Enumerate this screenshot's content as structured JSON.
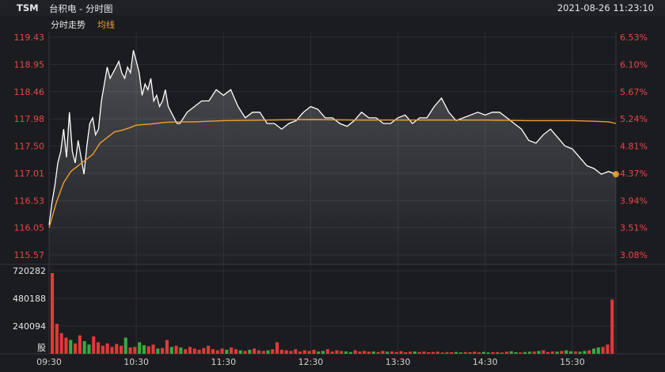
{
  "header": {
    "symbol": "TSM",
    "title": "台积电 - 分时图",
    "datetime": "2021-08-26 11:23:10"
  },
  "subheader": {
    "mode_label": "分时走势",
    "avg_label": "均线"
  },
  "colors": {
    "price_line": "#ffffff",
    "avg_line": "#f0a030",
    "up": "#e03a3a",
    "down": "#3aa844",
    "axis_red": "#e84848",
    "grid": "#2c2d33"
  },
  "chart_data": [
    {
      "type": "line",
      "title": "分时走势",
      "y_ticks": [
        "119.43",
        "118.95",
        "118.46",
        "117.98",
        "117.50",
        "117.01",
        "116.53",
        "116.05",
        "115.57"
      ],
      "y2_ticks": [
        "6.53%",
        "6.10%",
        "5.67%",
        "5.24%",
        "4.81%",
        "4.37%",
        "3.94%",
        "3.51%",
        "3.08%"
      ],
      "x_ticks": [
        "09:30",
        "10:30",
        "11:30",
        "12:30",
        "13:30",
        "14:30",
        "15:30"
      ],
      "ylim": [
        115.57,
        119.43
      ],
      "x_minutes_range": [
        0,
        390
      ],
      "series": [
        {
          "name": "价格",
          "x": [
            0,
            2,
            4,
            6,
            8,
            10,
            12,
            14,
            16,
            18,
            20,
            22,
            24,
            26,
            28,
            30,
            32,
            34,
            36,
            38,
            40,
            42,
            44,
            46,
            48,
            50,
            52,
            54,
            56,
            58,
            60,
            62,
            64,
            66,
            68,
            70,
            72,
            74,
            76,
            78,
            80,
            82,
            84,
            86,
            88,
            90,
            95,
            100,
            105,
            110,
            115,
            120,
            125,
            130,
            135,
            140,
            145,
            150,
            155,
            160,
            165,
            170,
            175,
            180,
            185,
            190,
            195,
            200,
            205,
            210,
            215,
            220,
            225,
            230,
            235,
            240,
            245,
            250,
            255,
            260,
            265,
            270,
            275,
            280,
            285,
            290,
            295,
            300,
            305,
            310,
            315,
            320,
            325,
            330,
            335,
            340,
            345,
            350,
            355,
            360,
            365,
            370,
            375,
            380,
            385,
            390
          ],
          "values": [
            116.1,
            116.5,
            116.8,
            117.2,
            117.4,
            117.8,
            117.3,
            118.1,
            117.4,
            117.2,
            117.6,
            117.3,
            117.0,
            117.5,
            117.9,
            118.0,
            117.7,
            117.8,
            118.3,
            118.6,
            118.9,
            118.7,
            118.8,
            118.9,
            119.0,
            118.8,
            118.7,
            118.9,
            118.8,
            119.2,
            119.0,
            118.8,
            118.4,
            118.6,
            118.5,
            118.7,
            118.3,
            118.4,
            118.2,
            118.3,
            118.5,
            118.2,
            118.1,
            118.0,
            117.9,
            117.9,
            118.1,
            118.2,
            118.3,
            118.3,
            118.5,
            118.4,
            118.5,
            118.2,
            118.0,
            118.1,
            118.1,
            117.9,
            117.9,
            117.8,
            117.9,
            117.95,
            118.1,
            118.2,
            118.15,
            118.0,
            118.0,
            117.9,
            117.85,
            117.95,
            118.1,
            118.0,
            118.0,
            117.9,
            117.9,
            118.0,
            118.05,
            117.9,
            118.0,
            118.0,
            118.2,
            118.35,
            118.1,
            117.95,
            118.0,
            118.05,
            118.1,
            118.05,
            118.1,
            118.1,
            118.0,
            117.9,
            117.8,
            117.6,
            117.55,
            117.7,
            117.8,
            117.65,
            117.5,
            117.45,
            117.3,
            117.15,
            117.1,
            117.0,
            117.05,
            117.0
          ],
          "color": "#ffffff"
        },
        {
          "name": "均线",
          "x": [
            0,
            5,
            10,
            15,
            20,
            25,
            30,
            35,
            40,
            45,
            50,
            55,
            60,
            70,
            80,
            90,
            100,
            120,
            150,
            180,
            210,
            240,
            270,
            300,
            330,
            360,
            375,
            385,
            390
          ],
          "values": [
            116.05,
            116.5,
            116.85,
            117.05,
            117.15,
            117.25,
            117.35,
            117.55,
            117.65,
            117.75,
            117.78,
            117.82,
            117.87,
            117.89,
            117.92,
            117.93,
            117.93,
            117.95,
            117.96,
            117.97,
            117.96,
            117.96,
            117.96,
            117.96,
            117.95,
            117.95,
            117.94,
            117.93,
            117.9
          ],
          "color": "#f0a030"
        }
      ]
    },
    {
      "type": "bar",
      "title": "成交量",
      "unit_label": "股",
      "y_ticks": [
        "720282",
        "480188",
        "240094"
      ],
      "ylim": [
        0,
        720282
      ],
      "up_color": "#e03a3a",
      "down_color": "#3aa844",
      "values": [
        700000,
        260000,
        180000,
        140000,
        120000,
        90000,
        160000,
        110000,
        80000,
        150000,
        100000,
        70000,
        90000,
        60000,
        85000,
        70000,
        140000,
        55000,
        60000,
        100000,
        75000,
        65000,
        80000,
        45000,
        50000,
        120000,
        60000,
        70000,
        55000,
        40000,
        60000,
        45000,
        35000,
        50000,
        70000,
        40000,
        30000,
        45000,
        35000,
        55000,
        40000,
        30000,
        25000,
        35000,
        45000,
        30000,
        25000,
        30000,
        40000,
        100000,
        35000,
        30000,
        25000,
        40000,
        20000,
        30000,
        25000,
        35000,
        20000,
        25000,
        40000,
        20000,
        30000,
        25000,
        20000,
        15000,
        30000,
        20000,
        25000,
        18000,
        20000,
        15000,
        25000,
        18000,
        20000,
        15000,
        22000,
        14000,
        18000,
        20000,
        15000,
        20000,
        14000,
        16000,
        18000,
        12000,
        15000,
        14000,
        16000,
        12000,
        15000,
        14000,
        18000,
        13000,
        16000,
        12000,
        14000,
        15000,
        12000,
        18000,
        22000,
        14000,
        12000,
        16000,
        18000,
        20000,
        25000,
        30000,
        15000,
        20000,
        18000,
        25000,
        30000,
        22000,
        20000,
        18000,
        25000,
        30000,
        45000,
        55000,
        60000,
        80000,
        470000
      ]
    }
  ]
}
